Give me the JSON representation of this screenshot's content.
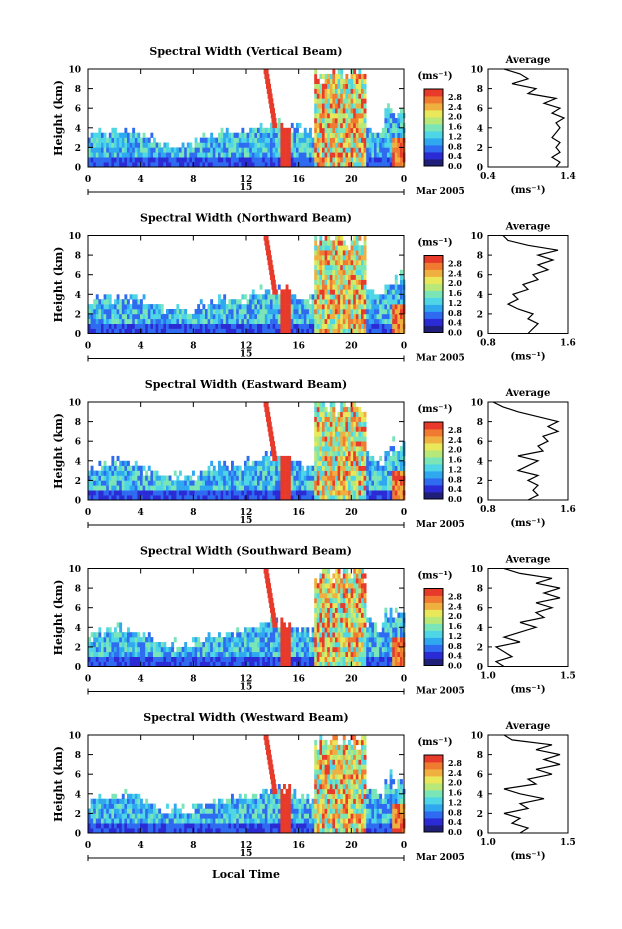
{
  "page": {
    "x_axis_title": "Local Time",
    "date_label": "Mar 2005",
    "day_label": "15",
    "avg_title": "Average",
    "units_label": "(ms⁻¹)"
  },
  "colorbar": {
    "label": "(ms⁻¹)",
    "ticks": [
      "0.0",
      "0.4",
      "0.8",
      "1.2",
      "1.6",
      "2.0",
      "2.4",
      "2.8"
    ],
    "colors": [
      "#1f1f7a",
      "#2b2bd6",
      "#2f6bf0",
      "#2fa8f0",
      "#4fd6e6",
      "#7ae6b8",
      "#b8e878",
      "#e8e85a",
      "#f0b040",
      "#f07a30",
      "#e83a2a"
    ]
  },
  "chart_data": [
    {
      "type": "heatmap",
      "title": "Spectral Width (Vertical Beam)",
      "xlabel": "",
      "ylabel": "Height (km)",
      "xlim": [
        0,
        24
      ],
      "ylim": [
        0,
        10
      ],
      "xticks": [
        "0",
        "4",
        "8",
        "12",
        "16",
        "20",
        "0"
      ],
      "yticks": [
        "0",
        "2",
        "4",
        "6",
        "8",
        "10"
      ],
      "avg": {
        "title": "Average",
        "xlabel": "(ms⁻¹)",
        "xticks": [
          "0.4",
          "1.4"
        ],
        "xlim": [
          0.4,
          1.4
        ],
        "yticks": [
          "0",
          "2",
          "4",
          "6",
          "8",
          "10"
        ],
        "profile": [
          [
            1.25,
            0
          ],
          [
            1.3,
            0.5
          ],
          [
            1.2,
            1
          ],
          [
            1.3,
            1.5
          ],
          [
            1.25,
            2
          ],
          [
            1.3,
            2.5
          ],
          [
            1.2,
            3
          ],
          [
            1.25,
            3.5
          ],
          [
            1.3,
            4
          ],
          [
            1.25,
            4.5
          ],
          [
            1.35,
            5
          ],
          [
            1.2,
            5.5
          ],
          [
            1.3,
            6
          ],
          [
            1.1,
            6.5
          ],
          [
            1.25,
            7
          ],
          [
            0.9,
            7.5
          ],
          [
            1.0,
            8
          ],
          [
            0.7,
            8.5
          ],
          [
            0.9,
            9
          ],
          [
            0.8,
            9.5
          ],
          [
            0.6,
            10
          ]
        ]
      }
    },
    {
      "type": "heatmap",
      "title": "Spectral Width (Northward Beam)",
      "xlabel": "",
      "ylabel": "Height (km)",
      "xlim": [
        0,
        24
      ],
      "ylim": [
        0,
        10
      ],
      "xticks": [
        "0",
        "4",
        "8",
        "12",
        "16",
        "20",
        "0"
      ],
      "yticks": [
        "0",
        "2",
        "4",
        "6",
        "8",
        "10"
      ],
      "avg": {
        "title": "Average",
        "xlabel": "(ms⁻¹)",
        "xticks": [
          "0.8",
          "1.6"
        ],
        "xlim": [
          0.8,
          1.6
        ],
        "yticks": [
          "0",
          "2",
          "4",
          "6",
          "8",
          "10"
        ],
        "profile": [
          [
            1.2,
            0
          ],
          [
            1.25,
            0.5
          ],
          [
            1.3,
            1
          ],
          [
            1.2,
            1.5
          ],
          [
            1.25,
            2
          ],
          [
            1.1,
            2.5
          ],
          [
            1.0,
            3
          ],
          [
            1.1,
            3.5
          ],
          [
            1.05,
            4
          ],
          [
            1.2,
            4.5
          ],
          [
            1.15,
            5
          ],
          [
            1.3,
            5.5
          ],
          [
            1.25,
            6
          ],
          [
            1.4,
            6.5
          ],
          [
            1.3,
            7
          ],
          [
            1.45,
            7.5
          ],
          [
            1.3,
            8
          ],
          [
            1.5,
            8.5
          ],
          [
            1.2,
            9
          ],
          [
            1.0,
            9.5
          ],
          [
            0.95,
            10
          ]
        ]
      }
    },
    {
      "type": "heatmap",
      "title": "Spectral Width (Eastward Beam)",
      "xlabel": "",
      "ylabel": "Height (km)",
      "xlim": [
        0,
        24
      ],
      "ylim": [
        0,
        10
      ],
      "xticks": [
        "0",
        "4",
        "8",
        "12",
        "16",
        "20",
        "0"
      ],
      "yticks": [
        "0",
        "2",
        "4",
        "6",
        "8",
        "10"
      ],
      "avg": {
        "title": "Average",
        "xlabel": "(ms⁻¹)",
        "xticks": [
          "0.8",
          "1.6"
        ],
        "xlim": [
          0.8,
          1.6
        ],
        "yticks": [
          "0",
          "2",
          "4",
          "6",
          "8",
          "10"
        ],
        "profile": [
          [
            1.2,
            0
          ],
          [
            1.3,
            0.5
          ],
          [
            1.25,
            1
          ],
          [
            1.3,
            1.5
          ],
          [
            1.2,
            2
          ],
          [
            1.3,
            2.5
          ],
          [
            1.1,
            3
          ],
          [
            1.2,
            3.5
          ],
          [
            1.3,
            4
          ],
          [
            1.1,
            4.5
          ],
          [
            1.35,
            5
          ],
          [
            1.3,
            5.5
          ],
          [
            1.4,
            6
          ],
          [
            1.35,
            6.5
          ],
          [
            1.5,
            7
          ],
          [
            1.4,
            7.5
          ],
          [
            1.5,
            8
          ],
          [
            1.3,
            8.5
          ],
          [
            1.1,
            9
          ],
          [
            0.95,
            9.5
          ],
          [
            0.85,
            10
          ]
        ]
      }
    },
    {
      "type": "heatmap",
      "title": "Spectral Width (Southward Beam)",
      "xlabel": "",
      "ylabel": "Height (km)",
      "xlim": [
        0,
        24
      ],
      "ylim": [
        0,
        10
      ],
      "xticks": [
        "0",
        "4",
        "8",
        "12",
        "16",
        "20",
        "0"
      ],
      "yticks": [
        "0",
        "2",
        "4",
        "6",
        "8",
        "10"
      ],
      "avg": {
        "title": "Average",
        "xlabel": "(ms⁻¹)",
        "xticks": [
          "1.0",
          "1.5"
        ],
        "xlim": [
          1.0,
          1.5
        ],
        "yticks": [
          "0",
          "2",
          "4",
          "6",
          "8",
          "10"
        ],
        "profile": [
          [
            1.1,
            0
          ],
          [
            1.05,
            0.5
          ],
          [
            1.15,
            1
          ],
          [
            1.1,
            1.5
          ],
          [
            1.05,
            2
          ],
          [
            1.2,
            2.5
          ],
          [
            1.1,
            3
          ],
          [
            1.2,
            3.5
          ],
          [
            1.3,
            4
          ],
          [
            1.2,
            4.5
          ],
          [
            1.35,
            5
          ],
          [
            1.3,
            5.5
          ],
          [
            1.4,
            6
          ],
          [
            1.3,
            6.5
          ],
          [
            1.45,
            7
          ],
          [
            1.35,
            7.5
          ],
          [
            1.45,
            8
          ],
          [
            1.3,
            8.5
          ],
          [
            1.4,
            9
          ],
          [
            1.2,
            9.5
          ],
          [
            1.1,
            10
          ]
        ]
      }
    },
    {
      "type": "heatmap",
      "title": "Spectral Width (Westward Beam)",
      "xlabel": "Local Time",
      "ylabel": "Height (km)",
      "xlim": [
        0,
        24
      ],
      "ylim": [
        0,
        10
      ],
      "xticks": [
        "0",
        "4",
        "8",
        "12",
        "16",
        "20",
        "0"
      ],
      "yticks": [
        "0",
        "2",
        "4",
        "6",
        "8",
        "10"
      ],
      "avg": {
        "title": "Average",
        "xlabel": "(ms⁻¹)",
        "xticks": [
          "1.0",
          "1.5"
        ],
        "xlim": [
          1.0,
          1.5
        ],
        "yticks": [
          "0",
          "2",
          "4",
          "6",
          "8",
          "10"
        ],
        "profile": [
          [
            1.2,
            0
          ],
          [
            1.25,
            0.5
          ],
          [
            1.15,
            1
          ],
          [
            1.2,
            1.5
          ],
          [
            1.1,
            2
          ],
          [
            1.25,
            2.5
          ],
          [
            1.2,
            3
          ],
          [
            1.35,
            3.5
          ],
          [
            1.2,
            4
          ],
          [
            1.1,
            4.5
          ],
          [
            1.3,
            5
          ],
          [
            1.25,
            5.5
          ],
          [
            1.4,
            6
          ],
          [
            1.3,
            6.5
          ],
          [
            1.45,
            7
          ],
          [
            1.35,
            7.5
          ],
          [
            1.45,
            8
          ],
          [
            1.3,
            8.5
          ],
          [
            1.4,
            9
          ],
          [
            1.15,
            9.5
          ],
          [
            1.1,
            10
          ]
        ]
      }
    }
  ]
}
